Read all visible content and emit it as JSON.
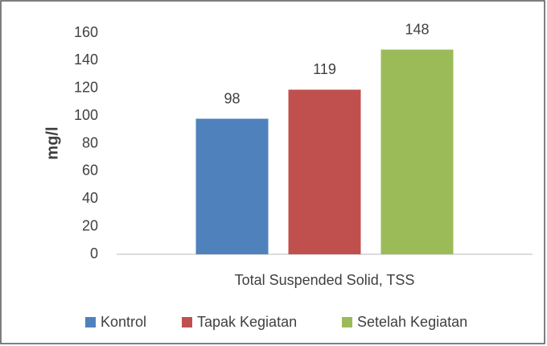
{
  "chart_data": {
    "type": "bar",
    "categories": [
      "Total Suspended Solid, TSS"
    ],
    "series": [
      {
        "name": "Kontrol",
        "color": "#4f81bd",
        "values": [
          98
        ]
      },
      {
        "name": "Tapak Kegiatan",
        "color": "#c0504d",
        "values": [
          119
        ]
      },
      {
        "name": "Setelah Kegiatan",
        "color": "#9bbb59",
        "values": [
          148
        ]
      }
    ],
    "ylabel": "mg/l",
    "ylim": [
      0,
      160
    ],
    "yticks": [
      0,
      20,
      40,
      60,
      80,
      100,
      120,
      140,
      160
    ],
    "grid": false,
    "legend": "bottom"
  }
}
